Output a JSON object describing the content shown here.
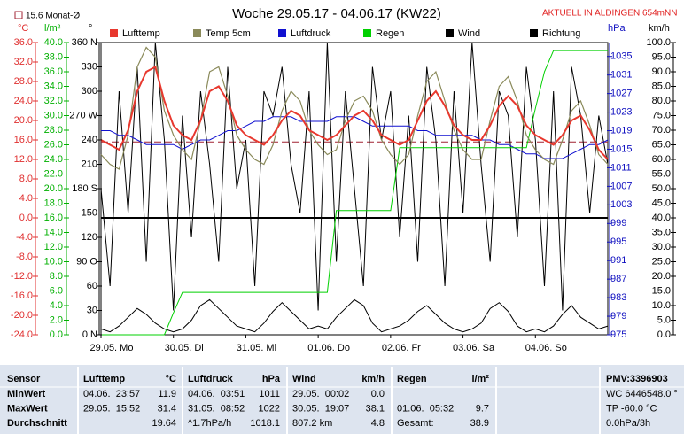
{
  "chart_data": {
    "type": "line",
    "title": "Woche 29.05.17 - 04.06.17 (KW22)",
    "subtitle": "AKTUELL IN ALDINGEN 654mNN",
    "monthly_avg": 15.6,
    "monthly_avg_label": "15.6 Monat-Ø",
    "monthly_avg_color": "#a02030",
    "xlim": [
      0,
      168
    ],
    "xticks": [
      {
        "value": 0,
        "label": "29.05. Mo"
      },
      {
        "value": 24,
        "label": "30.05. Di"
      },
      {
        "value": 48,
        "label": "31.05. Mi"
      },
      {
        "value": 72,
        "label": "01.06. Do"
      },
      {
        "value": 96,
        "label": "02.06. Fr"
      },
      {
        "value": 120,
        "label": "03.06. Sa"
      },
      {
        "value": 144,
        "label": "04.06. So"
      }
    ],
    "axes": [
      {
        "label": "°C",
        "color": "#e03030",
        "lim": [
          -24,
          36
        ],
        "ticks": [
          {
            "value": -24,
            "label": "-24.0"
          },
          {
            "value": -20,
            "label": "-20.0"
          },
          {
            "value": -16,
            "label": "-16.0"
          },
          {
            "value": -12,
            "label": "-12.0"
          },
          {
            "value": -8,
            "label": "-8.0"
          },
          {
            "value": -4,
            "label": "-4.0"
          },
          {
            "value": 0,
            "label": "0.0"
          },
          {
            "value": 4,
            "label": "4.0"
          },
          {
            "value": 8,
            "label": "8.0"
          },
          {
            "value": 12,
            "label": "12.0"
          },
          {
            "value": 16,
            "label": "16.0"
          },
          {
            "value": 20,
            "label": "20.0"
          },
          {
            "value": 24,
            "label": "24.0"
          },
          {
            "value": 28,
            "label": "28.0"
          },
          {
            "value": 32,
            "label": "32.0"
          },
          {
            "value": 36,
            "label": "36.0"
          }
        ]
      },
      {
        "label": "l/m²",
        "color": "#00b000",
        "lim": [
          0,
          40
        ],
        "ticks": [
          {
            "value": 0,
            "label": "0.0"
          },
          {
            "value": 2,
            "label": "2.0"
          },
          {
            "value": 4,
            "label": "4.0"
          },
          {
            "value": 6,
            "label": "6.0"
          },
          {
            "value": 8,
            "label": "8.0"
          },
          {
            "value": 10,
            "label": "10.0"
          },
          {
            "value": 12,
            "label": "12.0"
          },
          {
            "value": 14,
            "label": "14.0"
          },
          {
            "value": 16,
            "label": "16.0"
          },
          {
            "value": 18,
            "label": "18.0"
          },
          {
            "value": 20,
            "label": "20.0"
          },
          {
            "value": 22,
            "label": "22.0"
          },
          {
            "value": 24,
            "label": "24.0"
          },
          {
            "value": 26,
            "label": "26.0"
          },
          {
            "value": 28,
            "label": "28.0"
          },
          {
            "value": 30,
            "label": "30.0"
          },
          {
            "value": 32,
            "label": "32.0"
          },
          {
            "value": 34,
            "label": "34.0"
          },
          {
            "value": 36,
            "label": "36.0"
          },
          {
            "value": 38,
            "label": "38.0"
          },
          {
            "value": 40,
            "label": "40.0"
          }
        ]
      },
      {
        "label": "°",
        "color": "#000000",
        "lim": [
          0,
          360
        ],
        "ticks": [
          {
            "value": 0,
            "label": "0 N"
          },
          30,
          60,
          {
            "value": 90,
            "label": "90 O"
          },
          120,
          150,
          {
            "value": 180,
            "label": "180 S"
          },
          210,
          240,
          {
            "value": 270,
            "label": "270 W"
          },
          300,
          330,
          {
            "value": 360,
            "label": "360 N"
          }
        ]
      },
      {
        "label": "hPa",
        "color": "#1010c0",
        "lim": [
          975,
          1038
        ],
        "ticks": [
          975,
          979,
          983,
          987,
          991,
          995,
          999,
          1003,
          1007,
          1011,
          1015,
          1019,
          1023,
          1027,
          1031,
          1035
        ]
      },
      {
        "label": "km/h",
        "color": "#000000",
        "lim": [
          0,
          100
        ],
        "ticks": [
          {
            "value": 0,
            "label": "0.0"
          },
          {
            "value": 5,
            "label": "5.0"
          },
          {
            "value": 10,
            "label": "10.0"
          },
          {
            "value": 15,
            "label": "15.0"
          },
          {
            "value": 20,
            "label": "20.0"
          },
          {
            "value": 25,
            "label": "25.0"
          },
          {
            "value": 30,
            "label": "30.0"
          },
          {
            "value": 35,
            "label": "35.0"
          },
          {
            "value": 40,
            "label": "40.0"
          },
          {
            "value": 45,
            "label": "45.0"
          },
          {
            "value": 50,
            "label": "50.0"
          },
          {
            "value": 55,
            "label": "55.0"
          },
          {
            "value": 60,
            "label": "60.0"
          },
          {
            "value": 65,
            "label": "65.0"
          },
          {
            "value": 70,
            "label": "70.0"
          },
          {
            "value": 75,
            "label": "75.0"
          },
          {
            "value": 80,
            "label": "80.0"
          },
          {
            "value": 85,
            "label": "85.0"
          },
          {
            "value": 90,
            "label": "90.0"
          },
          {
            "value": 95,
            "label": "95.0"
          },
          {
            "value": 100,
            "label": "100.0"
          }
        ]
      }
    ],
    "x": [
      0,
      3,
      6,
      9,
      12,
      15,
      18,
      21,
      24,
      27,
      30,
      33,
      36,
      39,
      42,
      45,
      48,
      51,
      54,
      57,
      60,
      63,
      66,
      69,
      72,
      75,
      78,
      81,
      84,
      87,
      90,
      93,
      96,
      99,
      102,
      105,
      108,
      111,
      114,
      117,
      120,
      123,
      126,
      129,
      132,
      135,
      138,
      141,
      144,
      147,
      150,
      153,
      156,
      159,
      162,
      165,
      168
    ],
    "series": [
      {
        "name": "Richtung",
        "color": "#000000",
        "axis": 2,
        "values": [
          180,
          60,
          300,
          150,
          330,
          90,
          360,
          240,
          30,
          270,
          120,
          300,
          210,
          90,
          330,
          180,
          240,
          60,
          300,
          270,
          330,
          210,
          150,
          300,
          30,
          360,
          90,
          300,
          180,
          60,
          330,
          240,
          300,
          120,
          270,
          90,
          330,
          240,
          60,
          300,
          150,
          360,
          210,
          90,
          300,
          270,
          120,
          330,
          240,
          60,
          300,
          30,
          330,
          270,
          150,
          270,
          210
        ]
      },
      {
        "name": "Wind",
        "color": "#000000",
        "axis": 4,
        "values": [
          2,
          1,
          3,
          6,
          9,
          7,
          4,
          2,
          1,
          2,
          5,
          10,
          12,
          9,
          6,
          3,
          2,
          1,
          4,
          8,
          11,
          8,
          5,
          2,
          3,
          2,
          6,
          9,
          12,
          10,
          4,
          1,
          2,
          3,
          5,
          8,
          10,
          7,
          4,
          2,
          1,
          2,
          4,
          9,
          11,
          8,
          3,
          1,
          2,
          1,
          3,
          7,
          10,
          6,
          4,
          2,
          3
        ]
      },
      {
        "name": "Luftdruck",
        "color": "#1010d0",
        "axis": 3,
        "values": [
          1019,
          1019,
          1018,
          1018,
          1017,
          1016,
          1016,
          1016,
          1016,
          1015,
          1016,
          1017,
          1017,
          1018,
          1019,
          1019,
          1020,
          1021,
          1021,
          1022,
          1022,
          1022,
          1021,
          1021,
          1021,
          1021,
          1022,
          1022,
          1022,
          1021,
          1020,
          1020,
          1020,
          1020,
          1020,
          1019,
          1019,
          1018,
          1018,
          1018,
          1018,
          1018,
          1017,
          1017,
          1016,
          1016,
          1015,
          1014,
          1014,
          1013,
          1013,
          1013,
          1014,
          1015,
          1016,
          1016,
          1017
        ]
      },
      {
        "name": "Regen",
        "color": "#00d000",
        "axis": 1,
        "values": [
          0,
          0,
          0,
          0,
          0,
          0,
          0,
          0,
          3,
          5.8,
          5.8,
          5.8,
          5.8,
          5.8,
          5.8,
          5.8,
          5.8,
          5.8,
          5.8,
          5.8,
          5.8,
          5.8,
          5.8,
          5.8,
          5.8,
          5.8,
          17,
          17,
          17,
          17,
          17,
          17,
          17,
          25.6,
          25.6,
          25.6,
          25.6,
          25.6,
          25.6,
          25.6,
          25.6,
          25.6,
          25.6,
          25.6,
          25.6,
          25.6,
          25.6,
          25.6,
          31,
          36,
          38.9,
          38.9,
          38.9,
          38.9,
          38.9,
          38.9,
          38.9
        ]
      },
      {
        "name": "Temp 5cm",
        "color": "#8a8a5a",
        "axis": 0,
        "values": [
          13,
          11,
          10,
          17,
          31,
          35,
          33,
          22,
          17,
          14,
          12,
          20,
          30,
          31,
          25,
          17,
          14,
          12,
          11,
          15,
          22,
          26,
          24,
          18,
          15,
          13,
          14,
          20,
          24,
          25,
          22,
          16,
          13,
          11,
          13,
          21,
          28,
          30,
          24,
          18,
          14,
          12,
          12,
          20,
          27,
          29,
          24,
          17,
          14,
          12,
          11,
          16,
          22,
          24,
          19,
          13,
          11
        ]
      },
      {
        "name": "Lufttemp",
        "color": "#e8382e",
        "axis": 0,
        "values": [
          16,
          15,
          14,
          18,
          26,
          30,
          31,
          24,
          19,
          17,
          16,
          20,
          26,
          27,
          24,
          19,
          17,
          16,
          15,
          17,
          20,
          22,
          21,
          18,
          17,
          16,
          17,
          19,
          21,
          22,
          20,
          17,
          16,
          15,
          16,
          20,
          24,
          26,
          23,
          19,
          17,
          16,
          16,
          19,
          23,
          25,
          23,
          19,
          17,
          16,
          15,
          17,
          20,
          21,
          18,
          14,
          12
        ]
      }
    ]
  },
  "stats_table": {
    "header": {
      "label": "Sensor",
      "temp": "Lufttemp",
      "temp_unit": "°C",
      "press": "Luftdruck",
      "press_unit": "hPa",
      "wind": "Wind",
      "wind_unit": "km/h",
      "rain": "Regen",
      "rain_unit": "l/m²",
      "extra": "PMV:3396903"
    },
    "rows": [
      {
        "label": "MinWert",
        "temp_time": "04.06.  23:57",
        "temp": "11.9",
        "press_time": "04.06.  03:51",
        "press": "1011",
        "wind_time": "29.05.  00:02",
        "wind": "0.0",
        "extra": "WC 6446548.0 °"
      },
      {
        "label": "MaxWert",
        "temp_time": "29.05.  15:52",
        "temp": "31.4",
        "press_time": "31.05.  08:52",
        "press": "1022",
        "wind_time": "30.05.  19:07",
        "wind": "38.1",
        "rain_time": "01.06.  05:32",
        "rain": "9.7",
        "extra": "TP -60.0 °C"
      },
      {
        "label": "Durchschnitt",
        "temp": "19.64",
        "press_time": "^1.7hPa/h",
        "press": "1018.1",
        "wind_time": "807.2 km",
        "wind": "4.8",
        "rain_time": "Gesamt:",
        "rain": "38.9",
        "extra": "0.0hPa/3h"
      }
    ]
  }
}
